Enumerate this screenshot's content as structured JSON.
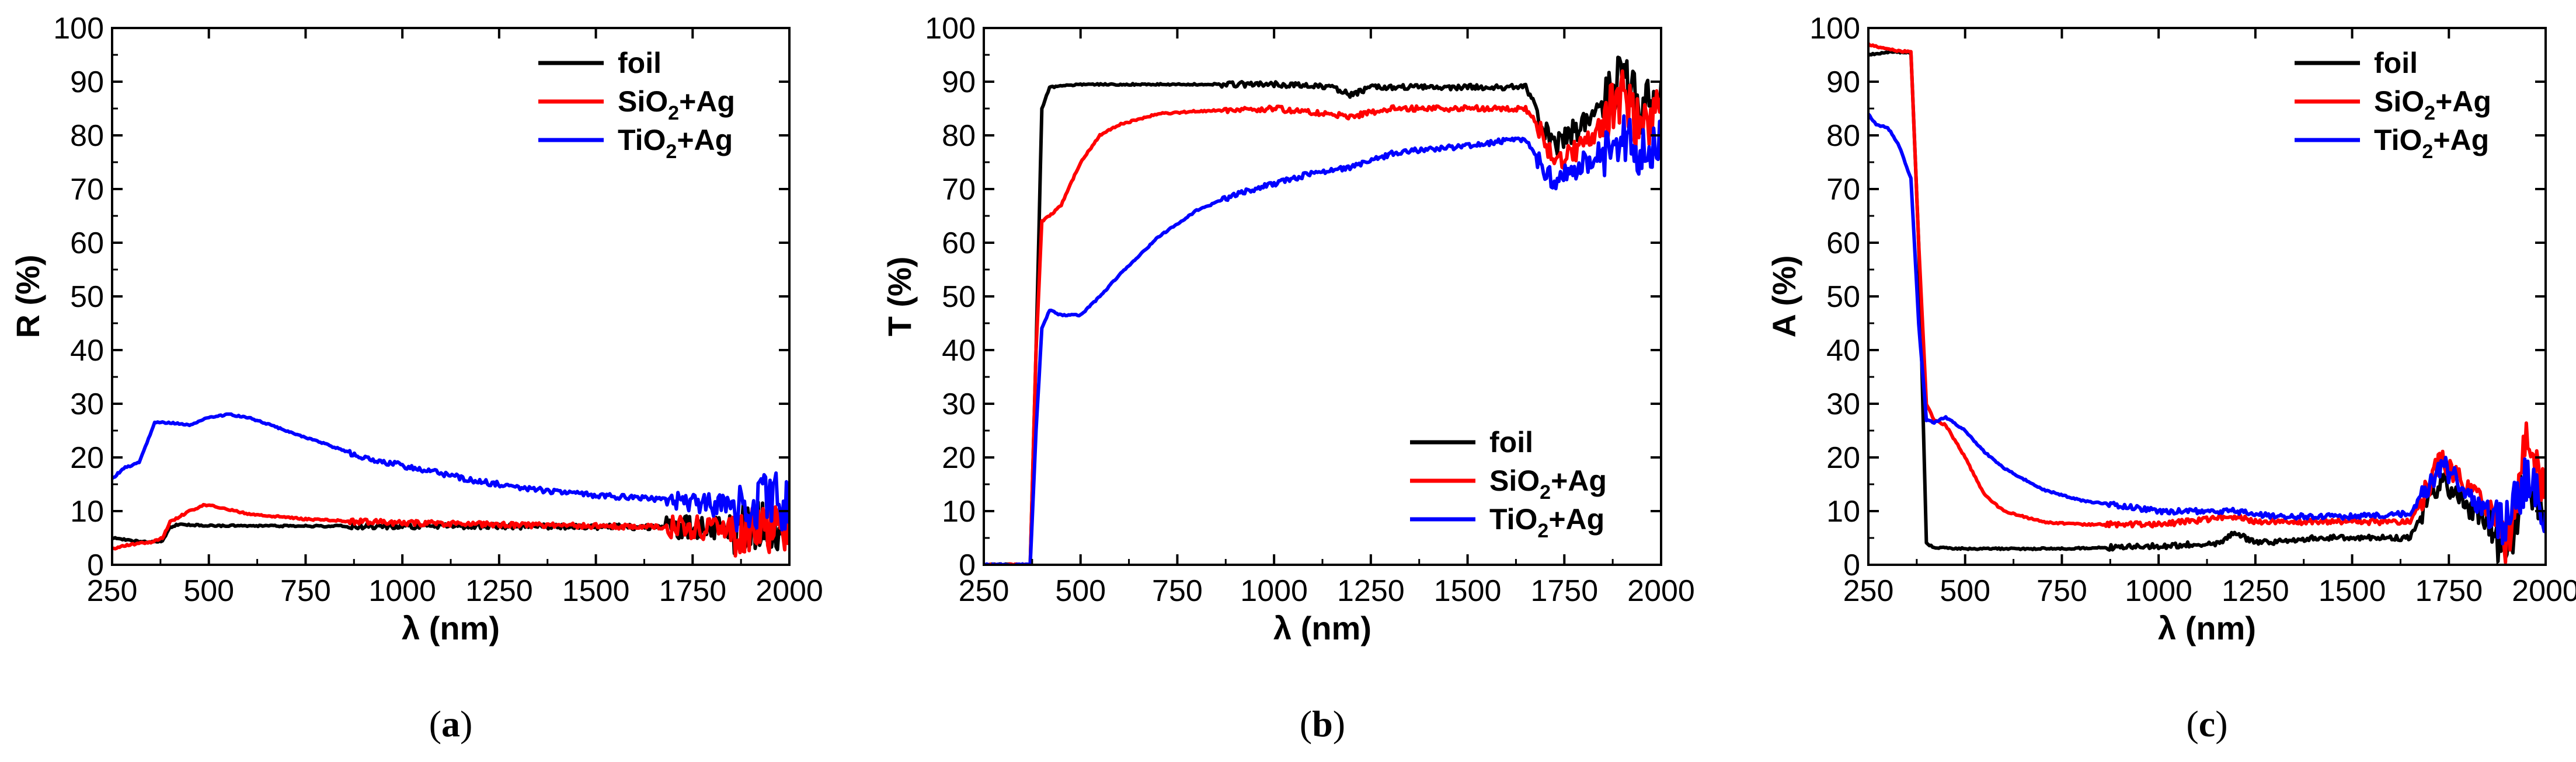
{
  "figure": {
    "panel_labels": [
      "(a)",
      "(b)",
      "(c)"
    ],
    "series_names": [
      "foil",
      "SiO2+Ag",
      "TiO2+Ag"
    ],
    "series_colors": {
      "foil": "#000000",
      "SiO2+Ag": "#ff0000",
      "TiO2+Ag": "#0000ff"
    }
  },
  "chart_data": [
    {
      "type": "line",
      "panel": "a",
      "title": "",
      "xlabel": "λ (nm)",
      "ylabel": "R (%)",
      "xlim": [
        250,
        2000
      ],
      "ylim": [
        0,
        100
      ],
      "xticks": [
        250,
        500,
        750,
        1000,
        1250,
        1500,
        1750,
        2000
      ],
      "yticks": [
        0,
        10,
        20,
        30,
        40,
        50,
        60,
        70,
        80,
        90,
        100
      ],
      "legend": {
        "position": "top-right",
        "entries": [
          {
            "series": "foil",
            "label": "foil"
          },
          {
            "series": "SiO2+Ag",
            "label": "SiO",
            "sub": "2",
            "suffix": "+Ag"
          },
          {
            "series": "TiO2+Ag",
            "label": "TiO",
            "sub": "2",
            "suffix": "+Ag"
          }
        ]
      },
      "series": [
        {
          "name": "foil",
          "color": "#000000",
          "x": [
            250,
            300,
            350,
            380,
            400,
            420,
            500,
            750,
            1000,
            1250,
            1500,
            1750,
            1850,
            1900,
            1950,
            2000
          ],
          "y": [
            5,
            4.5,
            4.2,
            4.4,
            7.0,
            7.5,
            7.3,
            7.2,
            7.2,
            7.2,
            7.1,
            7.0,
            7.0,
            7.2,
            7.0,
            7.0
          ]
        },
        {
          "name": "SiO2+Ag",
          "color": "#ff0000",
          "x": [
            250,
            300,
            350,
            380,
            400,
            450,
            490,
            520,
            600,
            750,
            900,
            1000,
            1250,
            1500,
            1750,
            1900,
            2000
          ],
          "y": [
            3,
            3.8,
            4.2,
            5.0,
            8.0,
            10.0,
            11.2,
            10.8,
            9.5,
            8.5,
            8.0,
            7.8,
            7.5,
            7.2,
            7.0,
            6.5,
            6.5
          ]
        },
        {
          "name": "TiO2+Ag",
          "color": "#0000ff",
          "x": [
            250,
            280,
            320,
            360,
            400,
            450,
            500,
            550,
            600,
            700,
            800,
            900,
            1000,
            1100,
            1200,
            1300,
            1400,
            1500,
            1600,
            1700,
            1800,
            1900,
            1950,
            2000
          ],
          "y": [
            16,
            18,
            19,
            26.5,
            26.5,
            26.0,
            27.5,
            28.0,
            27.5,
            25.0,
            22.5,
            20.0,
            18.5,
            17.0,
            15.5,
            14.5,
            13.5,
            13.0,
            12.5,
            12.0,
            11.0,
            10.5,
            13.0,
            10.5
          ]
        }
      ]
    },
    {
      "type": "line",
      "panel": "b",
      "title": "",
      "xlabel": "λ (nm)",
      "ylabel": "T (%)",
      "xlim": [
        250,
        2000
      ],
      "ylim": [
        0,
        100
      ],
      "xticks": [
        250,
        500,
        750,
        1000,
        1250,
        1500,
        1750,
        2000
      ],
      "yticks": [
        0,
        10,
        20,
        30,
        40,
        50,
        60,
        70,
        80,
        90,
        100
      ],
      "legend": {
        "position": "bottom-right",
        "entries": [
          {
            "series": "foil",
            "label": "foil"
          },
          {
            "series": "SiO2+Ag",
            "label": "SiO",
            "sub": "2",
            "suffix": "+Ag"
          },
          {
            "series": "TiO2+Ag",
            "label": "TiO",
            "sub": "2",
            "suffix": "+Ag"
          }
        ]
      },
      "series": [
        {
          "name": "foil",
          "color": "#000000",
          "x": [
            250,
            370,
            385,
            400,
            420,
            500,
            750,
            1000,
            1150,
            1200,
            1250,
            1500,
            1650,
            1680,
            1720,
            1780,
            1850,
            1900,
            1950,
            2000
          ],
          "y": [
            0,
            0,
            40,
            85,
            89,
            89.5,
            89.5,
            89.5,
            89,
            87.5,
            89,
            89,
            89,
            85,
            78,
            81,
            85,
            91,
            84,
            90
          ]
        },
        {
          "name": "SiO2+Ag",
          "color": "#ff0000",
          "x": [
            250,
            370,
            385,
            400,
            420,
            450,
            500,
            550,
            600,
            700,
            800,
            1000,
            1200,
            1300,
            1500,
            1650,
            1700,
            1720,
            1780,
            1850,
            1900,
            1950,
            2000
          ],
          "y": [
            0,
            0,
            40,
            64,
            65,
            67,
            75,
            80,
            82,
            84,
            84.5,
            85,
            83.5,
            85,
            85,
            85,
            80,
            74,
            77,
            82,
            88,
            80,
            87
          ]
        },
        {
          "name": "TiO2+Ag",
          "color": "#0000ff",
          "x": [
            250,
            370,
            385,
            400,
            420,
            450,
            500,
            550,
            600,
            700,
            800,
            900,
            1000,
            1100,
            1200,
            1300,
            1400,
            1500,
            1600,
            1650,
            1700,
            1720,
            1780,
            1850,
            1900,
            1950,
            2000
          ],
          "y": [
            0,
            0,
            25,
            44,
            47.5,
            46.5,
            46.5,
            50,
            54,
            61,
            66,
            69,
            71,
            73,
            74,
            76.5,
            77.5,
            78,
            79,
            79,
            74,
            71,
            74,
            77,
            80,
            76,
            80
          ]
        }
      ]
    },
    {
      "type": "line",
      "panel": "c",
      "title": "",
      "xlabel": "λ (nm)",
      "ylabel": "A (%)",
      "xlim": [
        250,
        2000
      ],
      "ylim": [
        0,
        100
      ],
      "xticks": [
        250,
        500,
        750,
        1000,
        1250,
        1500,
        1750,
        2000
      ],
      "yticks": [
        0,
        10,
        20,
        30,
        40,
        50,
        60,
        70,
        80,
        90,
        100
      ],
      "legend": {
        "position": "top-right",
        "entries": [
          {
            "series": "foil",
            "label": "foil"
          },
          {
            "series": "SiO2+Ag",
            "label": "SiO",
            "sub": "2",
            "suffix": "+Ag"
          },
          {
            "series": "TiO2+Ag",
            "label": "TiO",
            "sub": "2",
            "suffix": "+Ag"
          }
        ]
      },
      "series": [
        {
          "name": "foil",
          "color": "#000000",
          "x": [
            250,
            300,
            360,
            380,
            400,
            420,
            500,
            750,
            1000,
            1150,
            1200,
            1250,
            1400,
            1500,
            1650,
            1700,
            1730,
            1780,
            1850,
            1900,
            1950,
            2000
          ],
          "y": [
            95,
            95.5,
            95.5,
            60,
            4,
            3.2,
            3.0,
            3.0,
            3.5,
            4,
            6,
            4,
            5,
            5,
            5,
            12,
            16,
            12,
            8,
            2,
            18,
            8
          ]
        },
        {
          "name": "SiO2+Ag",
          "color": "#ff0000",
          "x": [
            250,
            300,
            360,
            380,
            400,
            420,
            450,
            500,
            550,
            600,
            700,
            800,
            1000,
            1200,
            1250,
            1500,
            1650,
            1700,
            1730,
            1780,
            1850,
            1900,
            1950,
            2000
          ],
          "y": [
            97,
            96,
            95.5,
            60,
            30,
            27,
            26,
            20,
            13,
            10,
            8,
            7.5,
            7.5,
            9,
            8,
            8,
            8,
            15,
            20,
            16,
            10,
            5,
            22,
            15
          ]
        },
        {
          "name": "TiO2+Ag",
          "color": "#0000ff",
          "x": [
            250,
            270,
            300,
            330,
            360,
            380,
            400,
            420,
            450,
            500,
            550,
            600,
            700,
            800,
            900,
            1000,
            1200,
            1300,
            1500,
            1650,
            1700,
            1730,
            1780,
            1850,
            1900,
            1950,
            2000
          ],
          "y": [
            84,
            82,
            81.5,
            78,
            72,
            45,
            27,
            26.5,
            27.5,
            25,
            21,
            18,
            14,
            12,
            11,
            10,
            10,
            9,
            9,
            9.5,
            15,
            19,
            15,
            10,
            7,
            17,
            10
          ]
        }
      ]
    }
  ]
}
